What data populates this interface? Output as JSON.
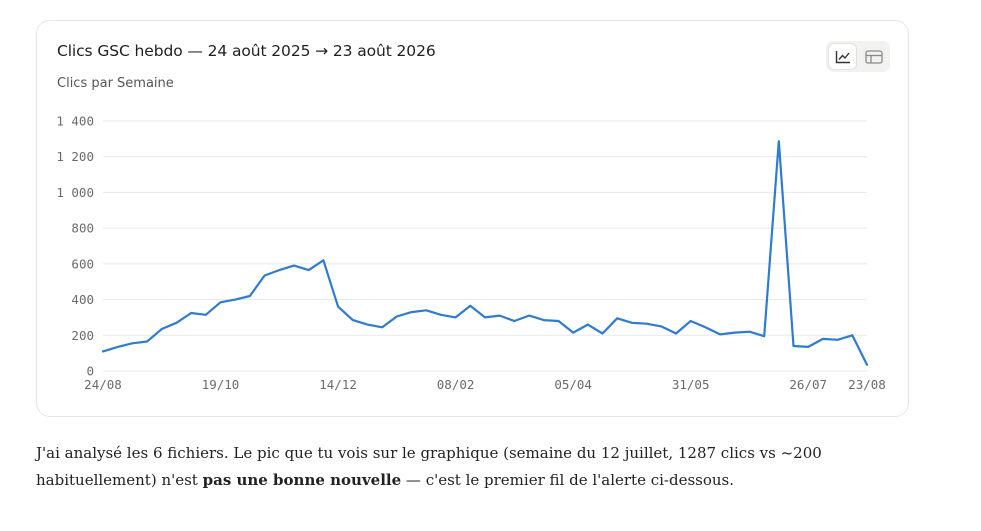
{
  "card": {
    "title": "Clics GSC hebdo — 24 août 2025 → 23 août 2026",
    "subtitle": "Clics par Semaine",
    "view_toggle": {
      "chart_icon": "line-chart-icon",
      "table_icon": "table-icon",
      "active": "chart"
    }
  },
  "colors": {
    "line": "#2f7bd1",
    "grid": "#e8e8e8",
    "axis_text": "#6b6b6b"
  },
  "chart_data": {
    "type": "line",
    "title": "Clics GSC hebdo — 24 août 2025 → 23 août 2026",
    "subtitle": "Clics par Semaine",
    "xlabel": "",
    "ylabel": "",
    "ylim": [
      0,
      1400
    ],
    "yticks": [
      0,
      200,
      400,
      600,
      800,
      1000,
      1200,
      1400
    ],
    "ytick_labels": [
      "0",
      "200",
      "400",
      "600",
      "800",
      "1 000",
      "1 200",
      "1 400"
    ],
    "xtick_labels": [
      "24/08",
      "19/10",
      "14/12",
      "08/02",
      "05/04",
      "31/05",
      "26/07",
      "23/08"
    ],
    "xtick_weeks": [
      0,
      8,
      16,
      24,
      32,
      40,
      48,
      52
    ],
    "grid": true,
    "legend": "none",
    "series": [
      {
        "values": [
          110,
          135,
          155,
          165,
          235,
          270,
          325,
          315,
          385,
          400,
          420,
          535,
          565,
          590,
          565,
          620,
          360,
          285,
          260,
          245,
          305,
          330,
          340,
          315,
          300,
          365,
          300,
          310,
          280,
          310,
          285,
          280,
          215,
          260,
          210,
          295,
          270,
          265,
          250,
          210,
          280,
          245,
          205,
          215,
          220,
          195,
          1287,
          140,
          135,
          180,
          175,
          200,
          35
        ]
      }
    ]
  },
  "message": {
    "part1": "J'ai analysé les 6 fichiers. Le pic que tu vois sur le graphique (semaine du 12 juillet, 1287 clics vs ~200 habituellement) n'est ",
    "bold": "pas une bonne nouvelle",
    "part2": " — c'est le premier fil de l'alerte ci-dessous."
  }
}
